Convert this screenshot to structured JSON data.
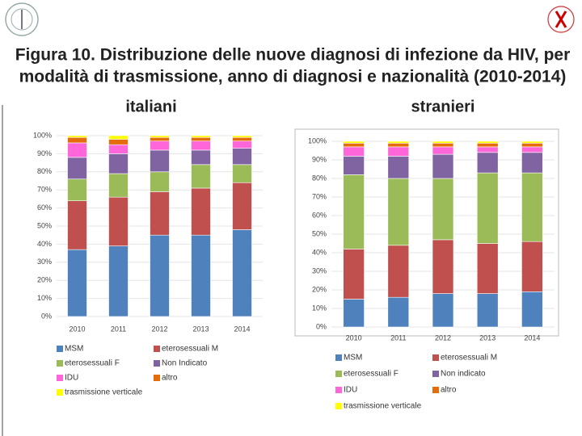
{
  "title_lines": [
    "Figura 10. Distribuzione delle nuove diagnosi di infezione da HIV, per",
    "modalità di trasmissione, anno di diagnosi e nazionalità (2010-2014)"
  ],
  "chart_data": [
    {
      "type": "stacked_bar",
      "title": "italiani",
      "categories": [
        "2010",
        "2011",
        "2012",
        "2013",
        "2014"
      ],
      "ylim": [
        0,
        100
      ],
      "yticks": [
        {
          "value": 0,
          "label": "0%"
        },
        {
          "value": 10,
          "label": "10%"
        },
        {
          "value": 20,
          "label": "20%"
        },
        {
          "value": 30,
          "label": "30%"
        },
        {
          "value": 40,
          "label": "40%"
        },
        {
          "value": 50,
          "label": "50%"
        },
        {
          "value": 60,
          "label": "60%"
        },
        {
          "value": 70,
          "label": "70%"
        },
        {
          "value": 80,
          "label": "80%"
        },
        {
          "value": 90,
          "label": "90%"
        },
        {
          "value": 100,
          "label": "100%"
        }
      ],
      "series": [
        {
          "name": "MSM",
          "color": "#4f81bd",
          "values": [
            37,
            39,
            45,
            45,
            48
          ]
        },
        {
          "name": "eterosessuali M",
          "color": "#c0504d",
          "values": [
            27,
            27,
            24,
            26,
            26
          ]
        },
        {
          "name": "eterosessuali F",
          "color": "#9bbb59",
          "values": [
            12,
            13,
            11,
            13,
            10
          ]
        },
        {
          "name": "Non Indicato",
          "color": "#8064a2",
          "values": [
            12,
            11,
            12,
            8,
            9
          ]
        },
        {
          "name": "IDU",
          "color": "#ff66d9",
          "values": [
            8,
            5,
            5,
            5,
            4
          ]
        },
        {
          "name": "altro",
          "color": "#e46c0a",
          "values": [
            3,
            3,
            2,
            2,
            2
          ]
        },
        {
          "name": "trasmissione verticale",
          "color": "#ffff00",
          "values": [
            1,
            2,
            1,
            1,
            1
          ]
        }
      ]
    },
    {
      "type": "stacked_bar",
      "title": "stranieri",
      "categories": [
        "2010",
        "2011",
        "2012",
        "2013",
        "2014"
      ],
      "ylim": [
        0,
        100
      ],
      "yticks": [
        {
          "value": 0,
          "label": "0%"
        },
        {
          "value": 10,
          "label": "10%"
        },
        {
          "value": 20,
          "label": "20%"
        },
        {
          "value": 30,
          "label": "30%"
        },
        {
          "value": 40,
          "label": "40%"
        },
        {
          "value": 50,
          "label": "50%"
        },
        {
          "value": 60,
          "label": "60%"
        },
        {
          "value": 70,
          "label": "70%"
        },
        {
          "value": 80,
          "label": "80%"
        },
        {
          "value": 90,
          "label": "90%"
        },
        {
          "value": 100,
          "label": "100%"
        }
      ],
      "series": [
        {
          "name": "MSM",
          "color": "#4f81bd",
          "values": [
            15,
            16,
            18,
            18,
            19
          ]
        },
        {
          "name": "eterosessuali M",
          "color": "#c0504d",
          "values": [
            27,
            28,
            29,
            27,
            27
          ]
        },
        {
          "name": "eterosessuali F",
          "color": "#9bbb59",
          "values": [
            40,
            36,
            33,
            38,
            37
          ]
        },
        {
          "name": "Non indicato",
          "color": "#8064a2",
          "values": [
            10,
            12,
            13,
            11,
            11
          ]
        },
        {
          "name": "IDU",
          "color": "#ff66d9",
          "values": [
            5,
            5,
            4,
            3,
            3
          ]
        },
        {
          "name": "altro",
          "color": "#e46c0a",
          "values": [
            2,
            2,
            2,
            2,
            2
          ]
        },
        {
          "name": "trasmissione verticale",
          "color": "#ffff00",
          "values": [
            1,
            1,
            1,
            1,
            1
          ]
        }
      ]
    }
  ]
}
